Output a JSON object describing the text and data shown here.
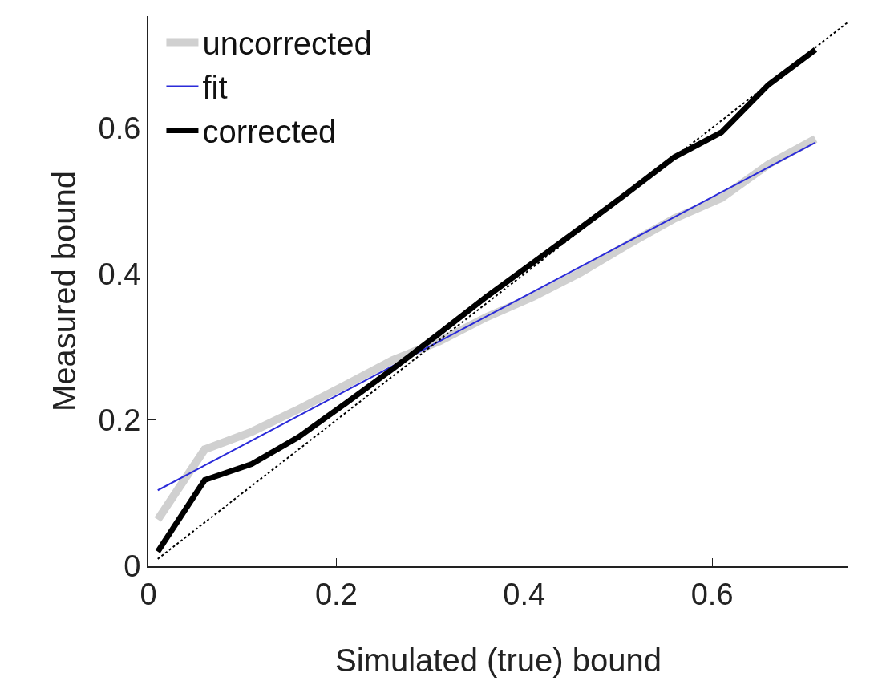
{
  "chart_data": {
    "type": "line",
    "xlabel": "Simulated (true) bound",
    "ylabel": "Measured bound",
    "xlim": [
      0,
      0.745
    ],
    "ylim": [
      0,
      0.753
    ],
    "xticks": [
      0,
      0.2,
      0.4,
      0.6
    ],
    "yticks": [
      0,
      0.2,
      0.4,
      0.6
    ],
    "grid": false,
    "legend": "top left",
    "marker": "none",
    "x": [
      0.01,
      0.06,
      0.11,
      0.16,
      0.21,
      0.26,
      0.31,
      0.36,
      0.41,
      0.46,
      0.51,
      0.56,
      0.61,
      0.66,
      0.71
    ],
    "series": [
      {
        "name": "uncorrected",
        "color": "#d0d0d0",
        "line_style": "solid",
        "values": [
          0.064,
          0.16,
          0.184,
          0.215,
          0.248,
          0.282,
          0.308,
          0.341,
          0.369,
          0.402,
          0.44,
          0.476,
          0.504,
          0.55,
          0.585
        ]
      },
      {
        "name": "fit",
        "color": "#2b2bd9",
        "line_style": "solid",
        "x": [
          0.01,
          0.71
        ],
        "values": [
          0.104,
          0.58
        ]
      },
      {
        "name": "corrected",
        "color": "#000000",
        "line_style": "solid",
        "values": [
          0.02,
          0.118,
          0.14,
          0.177,
          0.223,
          0.27,
          0.319,
          0.369,
          0.416,
          0.463,
          0.511,
          0.56,
          0.594,
          0.659,
          0.707
        ]
      },
      {
        "color": "#000000",
        "line_style": "dotted",
        "x": [
          0.01,
          0.745
        ],
        "values": [
          0.01,
          0.745
        ]
      }
    ]
  }
}
